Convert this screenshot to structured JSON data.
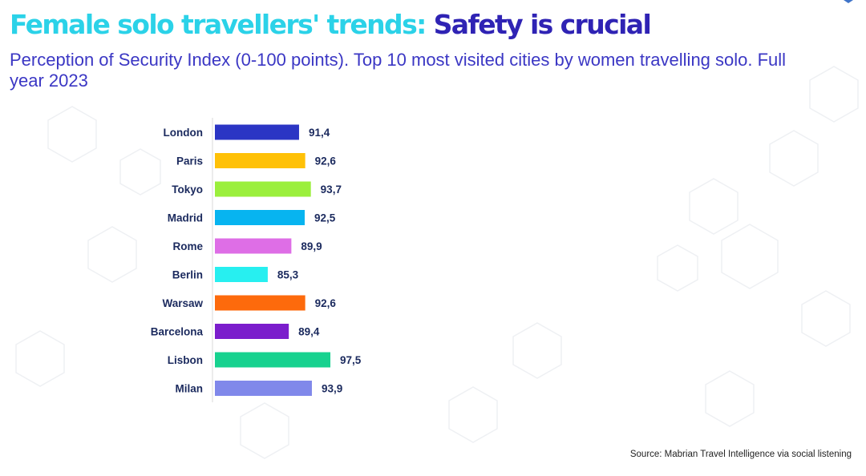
{
  "title": {
    "part1": "Female solo travellers' trends:",
    "part2": "Safety is crucial"
  },
  "subtitle": "Perception of Security Index (0-100 points). Top 10 most visited cities by women travelling solo. Full year 2023",
  "source": "Source: Mabrian Travel Intelligence via social listening",
  "colors": {
    "title_accent": "#2bd2e8",
    "title_dark": "#2f23b4",
    "subtitle": "#3b37c4",
    "labels": "#1b2a5e"
  },
  "chart_data": {
    "type": "bar",
    "orientation": "horizontal",
    "title": "",
    "xlabel": "",
    "ylabel": "",
    "grid": false,
    "legend": "none",
    "xlim": [
      0,
      100
    ],
    "categories": [
      "London",
      "Paris",
      "Tokyo",
      "Madrid",
      "Rome",
      "Berlin",
      "Warsaw",
      "Barcelona",
      "Lisbon",
      "Milan"
    ],
    "values": [
      91.4,
      92.6,
      93.7,
      92.5,
      89.9,
      85.3,
      92.6,
      89.4,
      97.5,
      93.9
    ],
    "value_labels": [
      "91,4",
      "92,6",
      "93,7",
      "92,5",
      "89,9",
      "85,3",
      "92,6",
      "89,4",
      "97,5",
      "93,9"
    ],
    "bar_colors": [
      "#2b35c4",
      "#ffc107",
      "#9bef3c",
      "#07b4f0",
      "#de6ee6",
      "#27eff0",
      "#fd6a0c",
      "#7b1dcc",
      "#17d28f",
      "#8088ea"
    ]
  }
}
